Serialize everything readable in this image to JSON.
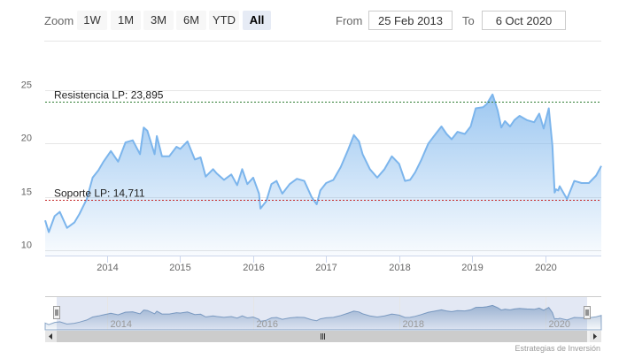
{
  "toolbar": {
    "zoom_label": "Zoom",
    "buttons": [
      "1W",
      "1M",
      "3M",
      "6M",
      "YTD",
      "All"
    ],
    "active_button": "All",
    "from_label": "From",
    "from_value": "25 Feb 2013",
    "to_label": "To",
    "to_value": "6 Oct 2020"
  },
  "credits": "Estrategias de Inversión",
  "colors": {
    "series_line": "#7cb5ec",
    "resistance_line": "#2e7d32",
    "support_line": "#c62828",
    "navigator_mask": "#ccd6eb"
  },
  "chart_data": {
    "type": "area",
    "title": "",
    "xlabel": "",
    "ylabel": "",
    "ylim": [
      10,
      25
    ],
    "xlim": [
      2013.15,
      2020.77
    ],
    "y_ticks": [
      10,
      15,
      20,
      25
    ],
    "x_ticks": [
      "2014",
      "2015",
      "2016",
      "2017",
      "2018",
      "2019",
      "2020"
    ],
    "navigator_ticks": [
      "2014",
      "2016",
      "2018",
      "2020"
    ],
    "grid": "horizontal",
    "legend": "none",
    "plot_lines": [
      {
        "label": "Resistencia LP: 23,895",
        "value": 23.895
      },
      {
        "label": "Soporte LP: 14,711",
        "value": 14.711
      }
    ],
    "series": [
      {
        "x": [
          2013.15,
          2013.2,
          2013.28,
          2013.35,
          2013.45,
          2013.55,
          2013.62,
          2013.72,
          2013.8,
          2013.88,
          2013.95,
          2014.05,
          2014.15,
          2014.25,
          2014.35,
          2014.45,
          2014.5,
          2014.55,
          2014.65,
          2014.68,
          2014.75,
          2014.85,
          2014.95,
          2015.0,
          2015.1,
          2015.2,
          2015.28,
          2015.35,
          2015.45,
          2015.5,
          2015.6,
          2015.7,
          2015.78,
          2015.85,
          2015.92,
          2016.0,
          2016.08,
          2016.1,
          2016.18,
          2016.25,
          2016.32,
          2016.4,
          2016.5,
          2016.6,
          2016.7,
          2016.8,
          2016.87,
          2016.92,
          2017.0,
          2017.1,
          2017.2,
          2017.3,
          2017.38,
          2017.45,
          2017.5,
          2017.6,
          2017.7,
          2017.8,
          2017.9,
          2018.0,
          2018.08,
          2018.15,
          2018.22,
          2018.3,
          2018.4,
          2018.5,
          2018.58,
          2018.65,
          2018.72,
          2018.8,
          2018.9,
          2018.98,
          2019.05,
          2019.15,
          2019.2,
          2019.28,
          2019.35,
          2019.4,
          2019.45,
          2019.52,
          2019.58,
          2019.65,
          2019.75,
          2019.85,
          2019.92,
          2019.98,
          2020.05,
          2020.1,
          2020.13,
          2020.15,
          2020.18,
          2020.2,
          2020.3,
          2020.4,
          2020.5,
          2020.6,
          2020.7,
          2020.77
        ],
        "values": [
          12.8,
          11.7,
          13.2,
          13.6,
          12.1,
          12.6,
          13.4,
          14.8,
          16.8,
          17.5,
          18.3,
          19.3,
          18.3,
          20.1,
          20.3,
          19.0,
          21.5,
          21.2,
          19.0,
          20.7,
          18.8,
          18.8,
          19.7,
          19.5,
          20.2,
          18.5,
          18.7,
          16.9,
          17.6,
          17.2,
          16.6,
          17.1,
          16.1,
          17.6,
          16.2,
          16.8,
          15.3,
          13.9,
          14.6,
          16.2,
          16.5,
          15.3,
          16.2,
          16.7,
          16.5,
          15.0,
          14.3,
          15.6,
          16.3,
          16.6,
          17.8,
          19.4,
          20.8,
          20.2,
          19.0,
          17.6,
          16.8,
          17.6,
          18.8,
          18.1,
          16.5,
          16.6,
          17.3,
          18.4,
          20.0,
          20.9,
          21.6,
          20.9,
          20.4,
          21.1,
          20.9,
          21.6,
          23.3,
          23.4,
          23.7,
          24.6,
          23.1,
          21.5,
          22.1,
          21.6,
          22.2,
          22.6,
          22.2,
          22.0,
          22.8,
          21.4,
          23.3,
          19.8,
          15.4,
          15.7,
          15.6,
          16.0,
          14.8,
          16.5,
          16.3,
          16.3,
          17.0,
          17.9
        ]
      }
    ]
  }
}
